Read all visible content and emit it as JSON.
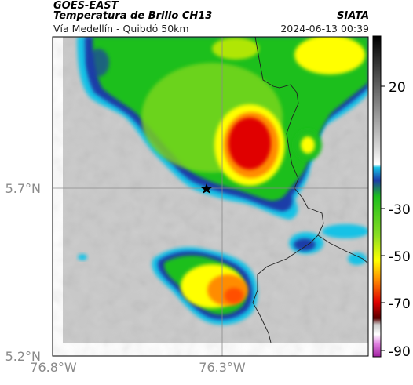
{
  "header": {
    "satellite": "GOES-EAST",
    "product": "Temperatura de Brillo CH13",
    "region": "Vía Medellín - Quibdó 50km",
    "agency": "SIATA",
    "datetime": "2024-06-13 00:39"
  },
  "axes": {
    "x_ticks": [
      {
        "value": -76.8,
        "label": "76.8°W"
      },
      {
        "value": -76.3,
        "label": "76.3°W"
      }
    ],
    "y_ticks": [
      {
        "value": 5.7,
        "label": "5.7°N"
      },
      {
        "value": 5.2,
        "label": "5.2°N"
      }
    ],
    "gridlines": true
  },
  "colorbar": {
    "min": -92,
    "max": 30,
    "tick_labels": [
      {
        "value": 20,
        "label": "20"
      },
      {
        "value": -30,
        "label": "-30"
      },
      {
        "value": -50,
        "label": "-50"
      },
      {
        "value": -70,
        "label": "-70"
      },
      {
        "value": -90,
        "label": "-90"
      }
    ]
  },
  "marker": {
    "type": "star",
    "lon": -76.32,
    "lat": 5.7
  },
  "colors": {
    "warm_gray": "#c8c8c8",
    "cyan": "#16c2e6",
    "blue": "#1e3ca8",
    "green": "#1dbf1d",
    "yellow": "#ffff00",
    "orange": "#ff8c00",
    "red": "#e00000",
    "dark_red": "#700000",
    "magenta": "#c040c0"
  }
}
